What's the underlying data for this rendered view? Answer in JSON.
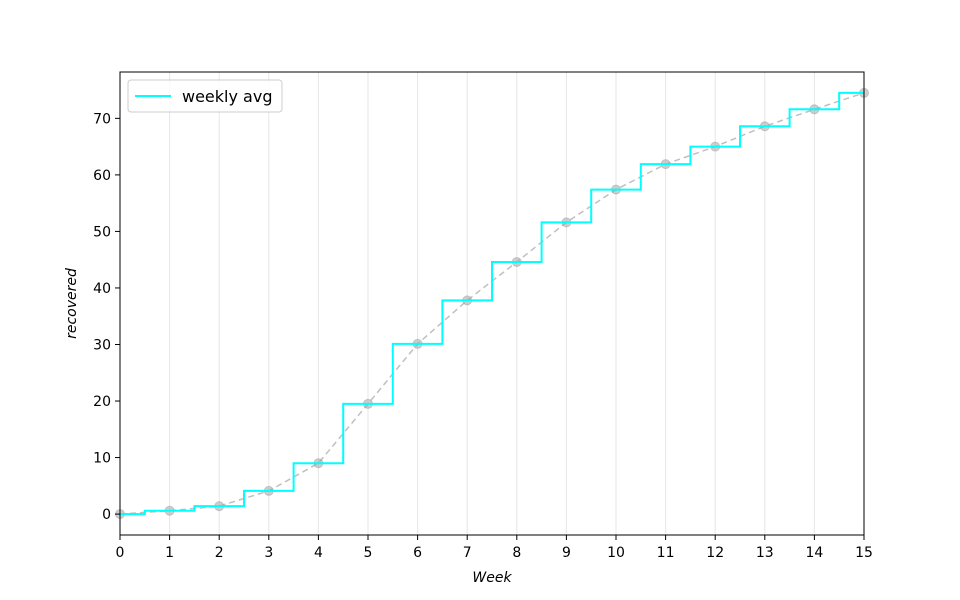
{
  "chart_data": {
    "type": "line",
    "title": "",
    "xlabel": "Week",
    "ylabel": "recovered",
    "xlim": [
      0,
      15
    ],
    "ylim": [
      -3.7,
      78.2
    ],
    "x_ticks": [
      0,
      1,
      2,
      3,
      4,
      5,
      6,
      7,
      8,
      9,
      10,
      11,
      12,
      13,
      14,
      15
    ],
    "y_ticks": [
      0,
      10,
      20,
      30,
      40,
      50,
      60,
      70
    ],
    "grid": "vertical",
    "legend_position": "top-left",
    "x": [
      0,
      1,
      2,
      3,
      4,
      5,
      6,
      7,
      8,
      9,
      10,
      11,
      12,
      13,
      14,
      15
    ],
    "series": [
      {
        "name": "weekly avg",
        "style": "step-mid",
        "color": "#00ffff",
        "values": [
          0.0,
          0.6,
          1.4,
          4.1,
          9.0,
          19.5,
          30.1,
          37.8,
          44.6,
          51.6,
          57.4,
          61.9,
          65.0,
          68.6,
          71.6,
          74.5
        ]
      },
      {
        "name": "",
        "style": "dashed-markers",
        "color": "#bfbfbf",
        "values": [
          0.0,
          0.6,
          1.4,
          4.1,
          9.0,
          19.5,
          30.1,
          37.8,
          44.6,
          51.6,
          57.4,
          61.9,
          65.0,
          68.6,
          71.6,
          74.5
        ]
      }
    ]
  }
}
